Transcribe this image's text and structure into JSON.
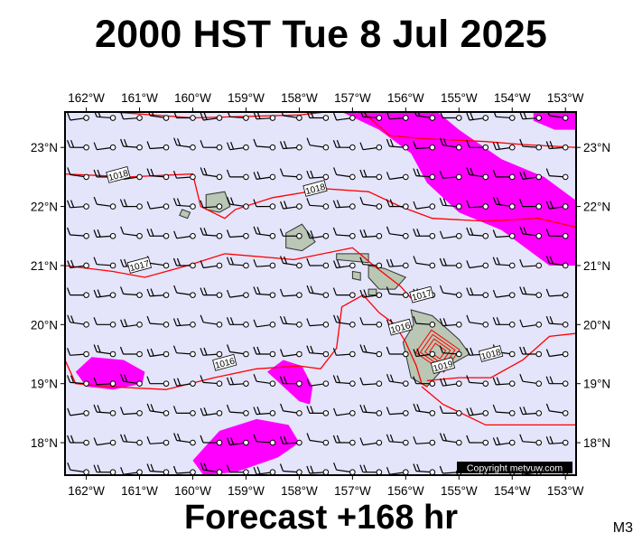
{
  "title": "2000 HST Tue 8 Jul 2025",
  "forecast_label": "Forecast +168 hr",
  "model_label": "M3",
  "copyright": "Copyright metvuw.com",
  "colors": {
    "ocean": "#e4e4fb",
    "precip": "#ff00ff",
    "isobar": "#ff0000",
    "land": "#b9c7b4",
    "frame": "#000000"
  },
  "chart_data": {
    "type": "map",
    "map_kind": "surface pressure, wind barbs and precipitation",
    "lon_range": [
      -162.4,
      -152.8
    ],
    "lat_range": [
      17.45,
      23.6
    ],
    "lon_ticks": [
      "162°W",
      "161°W",
      "160°W",
      "159°W",
      "158°W",
      "157°W",
      "156°W",
      "155°W",
      "154°W",
      "153°W"
    ],
    "lon_tick_values": [
      -162,
      -161,
      -160,
      -159,
      -158,
      -157,
      -156,
      -155,
      -154,
      -153
    ],
    "lat_ticks": [
      "23°N",
      "22°N",
      "21°N",
      "20°N",
      "19°N",
      "18°N"
    ],
    "lat_tick_values": [
      23,
      22,
      21,
      20,
      19,
      18
    ],
    "isobar_labels": [
      {
        "text": "1018",
        "lon": -161.4,
        "lat": 22.53
      },
      {
        "text": "1018",
        "lon": -157.7,
        "lat": 22.3
      },
      {
        "text": "1017",
        "lon": -161.0,
        "lat": 21.0
      },
      {
        "text": "1017",
        "lon": -155.7,
        "lat": 20.5
      },
      {
        "text": "1016",
        "lon": -159.4,
        "lat": 19.35
      },
      {
        "text": "1016",
        "lon": -156.1,
        "lat": 19.95
      },
      {
        "text": "1019",
        "lon": -155.3,
        "lat": 19.3
      },
      {
        "text": "1018",
        "lon": -154.4,
        "lat": 19.5
      }
    ],
    "isobars": [
      [
        [
          -162.4,
          22.55
        ],
        [
          -161.2,
          22.5
        ],
        [
          -160.0,
          22.55
        ],
        [
          -159.85,
          22.0
        ],
        [
          -159.4,
          21.8
        ],
        [
          -159.2,
          21.95
        ],
        [
          -158.5,
          22.15
        ],
        [
          -157.5,
          22.3
        ],
        [
          -156.7,
          22.25
        ],
        [
          -156.1,
          22.0
        ],
        [
          -155.5,
          21.8
        ],
        [
          -154.5,
          21.75
        ],
        [
          -153.5,
          21.8
        ],
        [
          -152.8,
          21.65
        ]
      ],
      [
        [
          -162.4,
          21.0
        ],
        [
          -161.5,
          20.9
        ],
        [
          -160.9,
          20.8
        ],
        [
          -160.1,
          21.0
        ],
        [
          -159.4,
          21.2
        ],
        [
          -158.1,
          21.1
        ],
        [
          -157.0,
          21.3
        ],
        [
          -156.6,
          21.0
        ],
        [
          -156.1,
          20.65
        ],
        [
          -155.9,
          20.45
        ]
      ],
      [
        [
          -162.4,
          19.4
        ],
        [
          -162.2,
          19.0
        ],
        [
          -161.6,
          18.95
        ],
        [
          -160.5,
          18.9
        ],
        [
          -159.6,
          19.1
        ],
        [
          -158.8,
          19.25
        ],
        [
          -158.0,
          19.3
        ],
        [
          -157.6,
          19.25
        ],
        [
          -157.3,
          19.6
        ],
        [
          -157.2,
          20.3
        ],
        [
          -156.8,
          20.5
        ],
        [
          -156.5,
          20.2
        ],
        [
          -156.2,
          20.0
        ],
        [
          -156.0,
          19.7
        ],
        [
          -155.8,
          19.3
        ],
        [
          -155.7,
          19.0
        ],
        [
          -155.6,
          18.95
        ]
      ],
      [
        [
          -155.6,
          19.05
        ],
        [
          -155.0,
          19.1
        ],
        [
          -154.4,
          19.1
        ],
        [
          -153.8,
          19.4
        ],
        [
          -153.3,
          19.8
        ],
        [
          -152.8,
          19.85
        ]
      ],
      [
        [
          -155.7,
          18.95
        ],
        [
          -155.3,
          18.65
        ],
        [
          -154.5,
          18.3
        ],
        [
          -153.5,
          18.3
        ],
        [
          -152.8,
          18.3
        ]
      ],
      [
        [
          -156.8,
          23.6
        ],
        [
          -156.3,
          23.2
        ],
        [
          -155.7,
          23.15
        ],
        [
          -154.5,
          23.1
        ],
        [
          -153.8,
          23.05
        ],
        [
          -152.8,
          23.0
        ]
      ],
      [
        [
          -161.5,
          23.6
        ],
        [
          -160.0,
          23.5
        ],
        [
          -158.0,
          23.55
        ],
        [
          -157.5,
          23.6
        ]
      ]
    ],
    "precip_areas": [
      [
        [
          -157.2,
          23.6
        ],
        [
          -155.4,
          23.6
        ],
        [
          -155.0,
          23.3
        ],
        [
          -154.2,
          22.8
        ],
        [
          -153.4,
          22.5
        ],
        [
          -152.8,
          22.1
        ],
        [
          -152.8,
          21.0
        ],
        [
          -153.3,
          21.0
        ],
        [
          -154.2,
          21.6
        ],
        [
          -155.0,
          21.9
        ],
        [
          -155.6,
          22.4
        ],
        [
          -155.9,
          22.9
        ],
        [
          -156.5,
          23.3
        ]
      ],
      [
        [
          -153.6,
          23.6
        ],
        [
          -152.8,
          23.6
        ],
        [
          -152.8,
          23.3
        ],
        [
          -153.2,
          23.3
        ],
        [
          -153.6,
          23.45
        ]
      ],
      [
        [
          -162.2,
          19.2
        ],
        [
          -161.9,
          19.45
        ],
        [
          -161.3,
          19.4
        ],
        [
          -160.9,
          19.2
        ],
        [
          -160.95,
          19.0
        ],
        [
          -161.5,
          18.9
        ],
        [
          -162.0,
          18.95
        ]
      ],
      [
        [
          -158.6,
          19.2
        ],
        [
          -158.3,
          19.4
        ],
        [
          -157.95,
          19.3
        ],
        [
          -157.75,
          18.95
        ],
        [
          -157.8,
          18.65
        ],
        [
          -158.0,
          18.7
        ],
        [
          -158.3,
          18.95
        ]
      ],
      [
        [
          -160.0,
          17.7
        ],
        [
          -159.5,
          18.2
        ],
        [
          -158.8,
          18.4
        ],
        [
          -158.2,
          18.3
        ],
        [
          -158.0,
          18.0
        ],
        [
          -158.4,
          17.75
        ],
        [
          -159.2,
          17.5
        ],
        [
          -159.8,
          17.45
        ]
      ]
    ],
    "islands": [
      {
        "name_hidden": "kauai",
        "points": [
          [
            -159.75,
            22.2
          ],
          [
            -159.4,
            22.25
          ],
          [
            -159.3,
            22.0
          ],
          [
            -159.5,
            21.9
          ],
          [
            -159.75,
            21.95
          ]
        ]
      },
      {
        "name_hidden": "niihau",
        "points": [
          [
            -160.2,
            21.95
          ],
          [
            -160.05,
            21.9
          ],
          [
            -160.1,
            21.8
          ],
          [
            -160.25,
            21.85
          ]
        ]
      },
      {
        "name_hidden": "oahu",
        "points": [
          [
            -158.25,
            21.55
          ],
          [
            -157.95,
            21.7
          ],
          [
            -157.7,
            21.4
          ],
          [
            -157.95,
            21.25
          ],
          [
            -158.25,
            21.3
          ]
        ]
      },
      {
        "name_hidden": "molokai",
        "points": [
          [
            -157.3,
            21.2
          ],
          [
            -156.7,
            21.2
          ],
          [
            -156.7,
            21.05
          ],
          [
            -157.3,
            21.1
          ]
        ]
      },
      {
        "name_hidden": "lanai",
        "points": [
          [
            -157.0,
            20.9
          ],
          [
            -156.85,
            20.88
          ],
          [
            -156.85,
            20.75
          ],
          [
            -157.0,
            20.78
          ]
        ]
      },
      {
        "name_hidden": "maui",
        "points": [
          [
            -156.7,
            21.0
          ],
          [
            -156.4,
            20.95
          ],
          [
            -156.0,
            20.8
          ],
          [
            -156.2,
            20.6
          ],
          [
            -156.5,
            20.6
          ],
          [
            -156.7,
            20.8
          ]
        ]
      },
      {
        "name_hidden": "kahoolawe",
        "points": [
          [
            -156.7,
            20.6
          ],
          [
            -156.55,
            20.6
          ],
          [
            -156.55,
            20.5
          ],
          [
            -156.7,
            20.5
          ]
        ]
      },
      {
        "name_hidden": "hawaii",
        "points": [
          [
            -155.9,
            20.25
          ],
          [
            -155.5,
            20.15
          ],
          [
            -155.0,
            19.75
          ],
          [
            -154.8,
            19.5
          ],
          [
            -155.3,
            19.25
          ],
          [
            -155.6,
            18.95
          ],
          [
            -155.9,
            19.1
          ],
          [
            -156.05,
            19.7
          ],
          [
            -155.85,
            20.0
          ]
        ]
      }
    ],
    "wind_rows_lat": [
      23.5,
      23.0,
      22.5,
      22.0,
      21.5,
      21.0,
      20.5,
      20.0,
      19.5,
      19.0,
      18.5,
      18.0,
      17.5
    ],
    "wind_cols_lon": [
      -162.0,
      -161.5,
      -161.0,
      -160.5,
      -160.0,
      -159.5,
      -159.0,
      -158.5,
      -158.0,
      -157.5,
      -157.0,
      -156.5,
      -156.0,
      -155.5,
      -155.0,
      -154.5,
      -154.0,
      -153.5,
      -153.0
    ],
    "grid": false
  }
}
